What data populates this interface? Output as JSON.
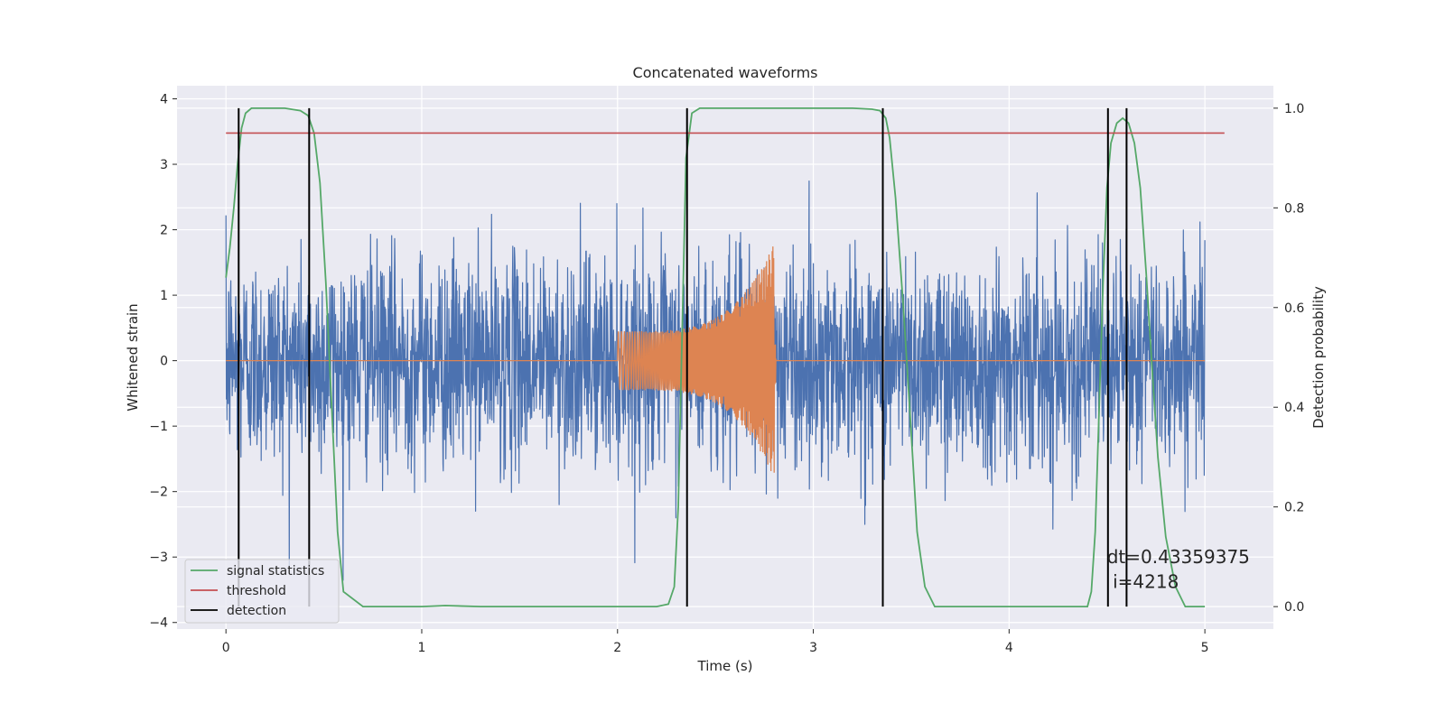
{
  "chart_data": {
    "type": "line",
    "title": "Concatenated waveforms",
    "xlabel": "Time (s)",
    "ylabel": "Whitened strain",
    "ylabel_right": "Detection probability",
    "xlim": [
      -0.25,
      5.35
    ],
    "ylim": [
      -4.1,
      4.2
    ],
    "ylim_right": [
      -0.045,
      1.045
    ],
    "xticks": [
      0,
      1,
      2,
      3,
      4,
      5
    ],
    "yticks": [
      -4,
      -3,
      -2,
      -1,
      0,
      1,
      2,
      3,
      4
    ],
    "yticks_right": [
      0.0,
      0.2,
      0.4,
      0.6,
      0.8,
      1.0
    ],
    "xtick_labels": [
      "0",
      "1",
      "2",
      "3",
      "4",
      "5"
    ],
    "ytick_labels": [
      "−4",
      "−3",
      "−2",
      "−1",
      "0",
      "1",
      "2",
      "3",
      "4"
    ],
    "ytick_right_labels": [
      "0.0",
      "0.2",
      "0.4",
      "0.6",
      "0.8",
      "1.0"
    ],
    "grid": true,
    "legend_position": "lower-left",
    "series": [
      {
        "name": "",
        "kind": "noise",
        "color": "#4c72b0",
        "axis": "left",
        "x_range": [
          0,
          5
        ],
        "amplitude_sd": 0.8,
        "peak_abs": 3.4
      },
      {
        "name": "",
        "kind": "chirp",
        "color": "#dd8452",
        "axis": "left",
        "x_range": [
          0,
          5
        ],
        "chirp_start": 2.0,
        "chirp_end": 2.8,
        "start_amplitude": 0.45,
        "peak_amplitude": 1.8
      },
      {
        "name": "signal statistics",
        "color": "#55a868",
        "axis": "right",
        "x": [
          0.0,
          0.02,
          0.04,
          0.06,
          0.08,
          0.1,
          0.13,
          0.16,
          0.2,
          0.3,
          0.38,
          0.42,
          0.45,
          0.48,
          0.51,
          0.54,
          0.57,
          0.6,
          0.7,
          1.0,
          1.12,
          1.3,
          1.6,
          2.0,
          2.2,
          2.26,
          2.29,
          2.31,
          2.33,
          2.35,
          2.38,
          2.42,
          2.5,
          2.8,
          3.0,
          3.2,
          3.3,
          3.34,
          3.37,
          3.39,
          3.42,
          3.46,
          3.5,
          3.53,
          3.57,
          3.62,
          3.8,
          4.0,
          4.2,
          4.4,
          4.42,
          4.44,
          4.46,
          4.48,
          4.5,
          4.52,
          4.55,
          4.58,
          4.61,
          4.64,
          4.67,
          4.7,
          4.73,
          4.76,
          4.8,
          4.85,
          4.9,
          5.0
        ],
        "y": [
          0.66,
          0.72,
          0.8,
          0.89,
          0.96,
          0.99,
          1.0,
          1.0,
          1.0,
          1.0,
          0.995,
          0.985,
          0.95,
          0.85,
          0.65,
          0.4,
          0.15,
          0.03,
          0.0,
          0.0,
          0.002,
          0.0,
          0.0,
          0.0,
          0.0,
          0.005,
          0.04,
          0.2,
          0.55,
          0.9,
          0.99,
          1.0,
          1.0,
          1.0,
          1.0,
          1.0,
          0.998,
          0.995,
          0.98,
          0.94,
          0.82,
          0.6,
          0.35,
          0.15,
          0.04,
          0.0,
          0.0,
          0.0,
          0.0,
          0.0,
          0.03,
          0.15,
          0.4,
          0.65,
          0.84,
          0.93,
          0.97,
          0.98,
          0.97,
          0.93,
          0.84,
          0.67,
          0.48,
          0.3,
          0.14,
          0.04,
          0.0,
          0.0
        ]
      },
      {
        "name": "threshold",
        "color": "#c44e52",
        "axis": "right",
        "x": [
          0,
          5.1
        ],
        "y": [
          0.95,
          0.95
        ]
      },
      {
        "name": "detection",
        "color": "#000000",
        "axis": "right",
        "kind": "vlines",
        "x": [
          0.065,
          0.425,
          2.355,
          3.355,
          4.505,
          4.6
        ],
        "y_range": [
          0.0,
          1.0
        ]
      }
    ],
    "annotations": [
      {
        "text": "dt=0.43359375",
        "x": 4.5,
        "y": 0.1
      },
      {
        "text": " i=4218",
        "x": 4.5,
        "y": 0.05
      }
    ]
  }
}
